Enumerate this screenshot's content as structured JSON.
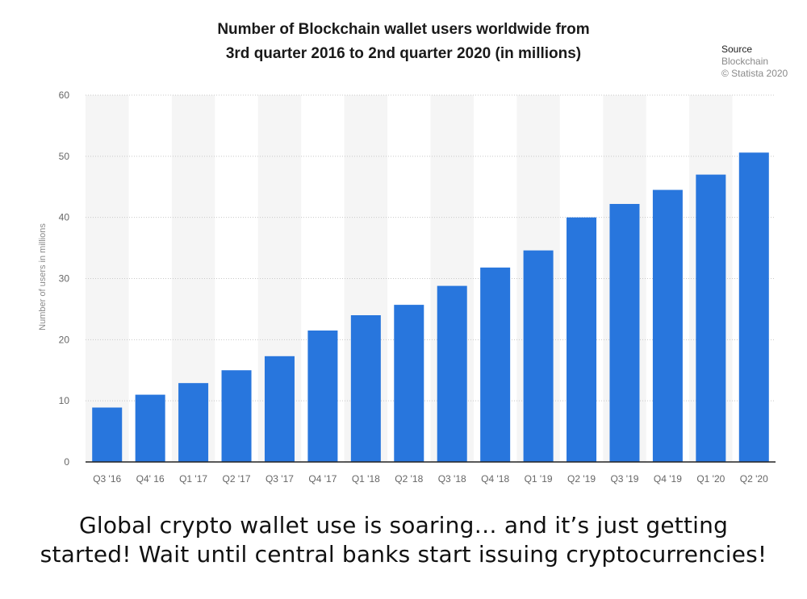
{
  "title": {
    "line1": "Number of Blockchain wallet users worldwide from",
    "line2": "3rd quarter 2016 to 2nd quarter 2020 (in millions)"
  },
  "source": {
    "heading": "Source",
    "line1": "Blockchain",
    "line2": "© Statista 2020"
  },
  "caption": {
    "line1": "Global crypto wallet use is soaring… and it’s just getting",
    "line2": "started! Wait until central banks start issuing cryptocurrencies!"
  },
  "chart_data": {
    "type": "bar",
    "title": "Number of Blockchain wallet users worldwide from 3rd quarter 2016 to 2nd quarter 2020 (in millions)",
    "xlabel": "",
    "ylabel": "Number of users in millions",
    "ylim": [
      0,
      60
    ],
    "yticks": [
      0,
      10,
      20,
      30,
      40,
      50,
      60
    ],
    "grid": true,
    "categories": [
      "Q3 '16",
      "Q4' 16",
      "Q1 '17",
      "Q2 '17",
      "Q3 '17",
      "Q4 '17",
      "Q1 '18",
      "Q2 '18",
      "Q3 '18",
      "Q4 '18",
      "Q1 '19",
      "Q2 '19",
      "Q3 '19",
      "Q4 '19",
      "Q1 '20",
      "Q2 '20"
    ],
    "values": [
      8.9,
      11.0,
      12.9,
      15.0,
      17.3,
      21.5,
      24.0,
      25.7,
      28.8,
      31.8,
      34.6,
      40.0,
      42.2,
      44.5,
      47.0,
      50.6
    ],
    "bar_color": "#2876dd",
    "band_color": "#f5f5f5"
  }
}
